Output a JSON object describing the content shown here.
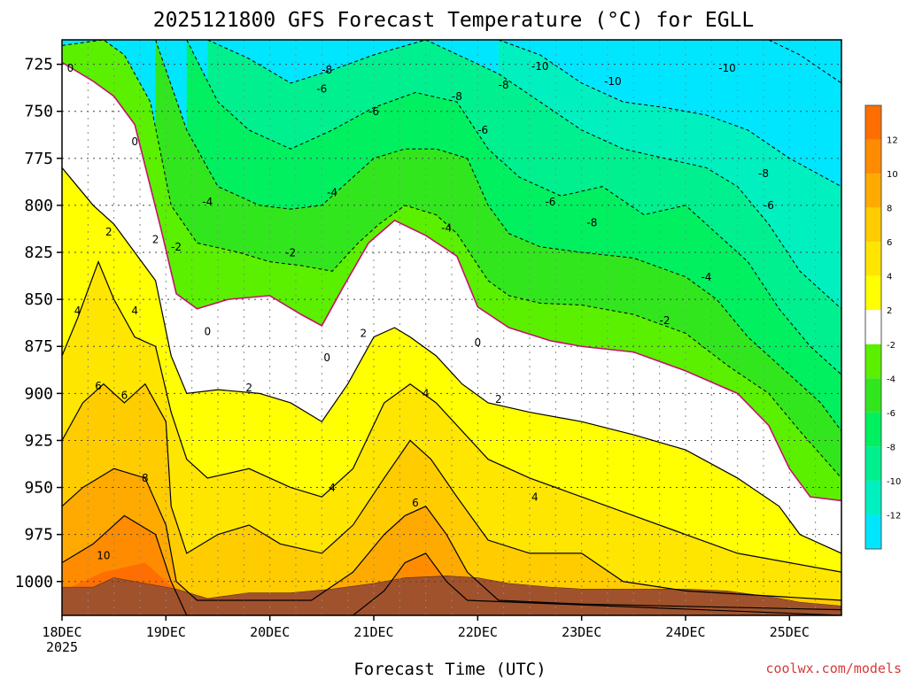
{
  "chart_data": {
    "type": "area",
    "title": "2025121800 GFS Forecast Temperature (°C) for EGLL",
    "xlabel": "Forecast Time (UTC)",
    "ylabel": "",
    "credit": "coolwx.com/models",
    "x_ticks": [
      {
        "label": "18DEC",
        "sub": "2025",
        "t": 0
      },
      {
        "label": "19DEC",
        "sub": "",
        "t": 1
      },
      {
        "label": "20DEC",
        "sub": "",
        "t": 2
      },
      {
        "label": "21DEC",
        "sub": "",
        "t": 3
      },
      {
        "label": "22DEC",
        "sub": "",
        "t": 4
      },
      {
        "label": "23DEC",
        "sub": "",
        "t": 5
      },
      {
        "label": "24DEC",
        "sub": "",
        "t": 6
      },
      {
        "label": "25DEC",
        "sub": "",
        "t": 7
      }
    ],
    "xlim_days": [
      0,
      7.5
    ],
    "y_ticks": [
      725,
      750,
      775,
      800,
      825,
      850,
      875,
      900,
      925,
      950,
      975,
      1000
    ],
    "ylim_hpa": [
      712,
      1018
    ],
    "color_scale": [
      {
        "from": -14,
        "to": -12,
        "color": "#00e6ff"
      },
      {
        "from": -12,
        "to": -10,
        "color": "#00f0c0"
      },
      {
        "from": -10,
        "to": -8,
        "color": "#00f090"
      },
      {
        "from": -8,
        "to": -6,
        "color": "#00f060"
      },
      {
        "from": -6,
        "to": -4,
        "color": "#32e61e"
      },
      {
        "from": -4,
        "to": -2,
        "color": "#5af000"
      },
      {
        "from": -2,
        "to": 2,
        "color": "#ffffff"
      },
      {
        "from": 2,
        "to": 4,
        "color": "#ffff00"
      },
      {
        "from": 4,
        "to": 6,
        "color": "#ffe600"
      },
      {
        "from": 6,
        "to": 8,
        "color": "#ffcc00"
      },
      {
        "from": 8,
        "to": 10,
        "color": "#ffaa00"
      },
      {
        "from": 10,
        "to": 12,
        "color": "#ff8c00"
      },
      {
        "from": 12,
        "to": 14,
        "color": "#ff6e00"
      }
    ],
    "colorbar_labels": [
      "12",
      "10",
      "8",
      "6",
      "4",
      "2",
      "-2",
      "-4",
      "-6",
      "-8",
      "-10",
      "-12"
    ],
    "terrain_color": "#a0522d",
    "contour_label_values": [
      "0",
      "0",
      "2",
      "2",
      "4",
      "4",
      "6",
      "6",
      "8",
      "10",
      "-2",
      "-4",
      "-6",
      "-8",
      "-10",
      "0",
      "2",
      "4",
      "-2",
      "-4",
      "-6",
      "-8",
      "0",
      "2",
      "4",
      "6",
      "-4",
      "-6",
      "-8",
      "-10",
      "0",
      "2",
      "4",
      "-6",
      "-8",
      "-10",
      "-2",
      "-4",
      "-6",
      "-8"
    ],
    "freezing_level_hpa": [
      {
        "t": 0.0,
        "p": 742
      },
      {
        "t": 0.3,
        "p": 752
      },
      {
        "t": 0.5,
        "p": 760
      },
      {
        "t": 0.7,
        "p": 775
      },
      {
        "t": 0.95,
        "p": 830
      },
      {
        "t": 1.1,
        "p": 865
      },
      {
        "t": 1.3,
        "p": 873
      },
      {
        "t": 1.6,
        "p": 868
      },
      {
        "t": 2.0,
        "p": 866
      },
      {
        "t": 2.3,
        "p": 876
      },
      {
        "t": 2.5,
        "p": 882
      },
      {
        "t": 2.7,
        "p": 862
      },
      {
        "t": 2.95,
        "p": 838
      },
      {
        "t": 3.2,
        "p": 826
      },
      {
        "t": 3.5,
        "p": 834
      },
      {
        "t": 3.8,
        "p": 845
      },
      {
        "t": 4.0,
        "p": 872
      },
      {
        "t": 4.3,
        "p": 883
      },
      {
        "t": 4.7,
        "p": 890
      },
      {
        "t": 5.0,
        "p": 893
      },
      {
        "t": 5.5,
        "p": 896
      },
      {
        "t": 6.0,
        "p": 906
      },
      {
        "t": 6.5,
        "p": 918
      },
      {
        "t": 6.8,
        "p": 935
      },
      {
        "t": 7.0,
        "p": 958
      },
      {
        "t": 7.2,
        "p": 973
      },
      {
        "t": 7.5,
        "p": 975
      }
    ]
  }
}
